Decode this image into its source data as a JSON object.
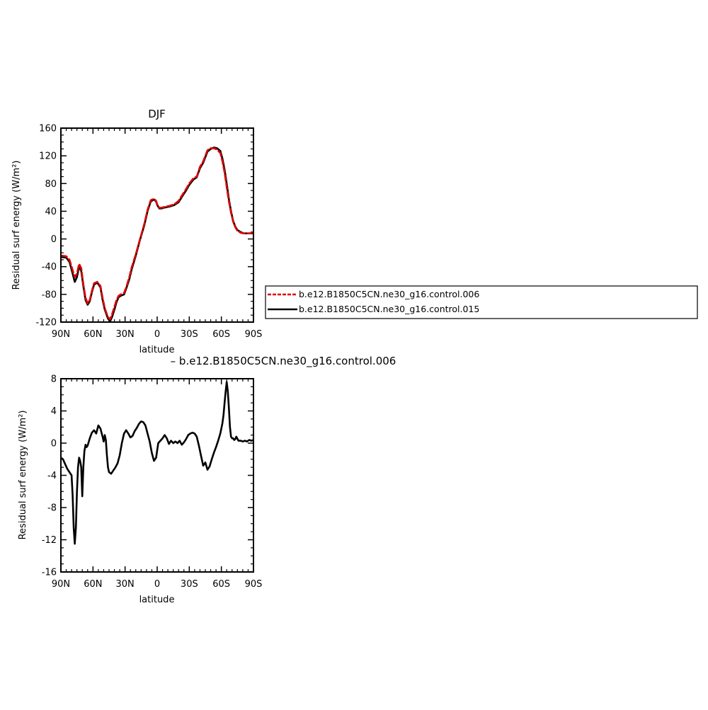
{
  "chart_data": [
    {
      "type": "line",
      "title": "DJF",
      "xlabel": "latitude",
      "ylabel": "Residual surf energy (W/m²)",
      "xlim": [
        90,
        -90
      ],
      "ylim": [
        -120,
        160
      ],
      "xticks": [
        90,
        60,
        30,
        0,
        -30,
        -60,
        -90
      ],
      "xtick_labels": [
        "90N",
        "60N",
        "30N",
        "0",
        "30S",
        "60S",
        "90S"
      ],
      "yticks": [
        -120,
        -80,
        -40,
        0,
        40,
        80,
        120,
        160
      ],
      "ytick_labels": [
        "-120",
        "-80",
        "-40",
        "0",
        "40",
        "80",
        "120",
        "160"
      ],
      "legend_position": "right",
      "series": [
        {
          "name": "b.e12.B1850C5CN.ne30_g16.control.006",
          "color": "#e00000",
          "dash": "dashed",
          "x": [
            90,
            85,
            82,
            79,
            77,
            75,
            73,
            71,
            69,
            67,
            65,
            63,
            61,
            59,
            56,
            53,
            51,
            49,
            46,
            44,
            42,
            40,
            38,
            36,
            34,
            31,
            29,
            26,
            24,
            20,
            16,
            12,
            9,
            6,
            3,
            1,
            0,
            -2,
            -4,
            -6,
            -9,
            -12,
            -16,
            -20,
            -24,
            -27,
            -30,
            -34,
            -37,
            -40,
            -43,
            -45,
            -47,
            -50,
            -53,
            -56,
            -59,
            -61,
            -63,
            -65,
            -67,
            -69,
            -71,
            -73,
            -75,
            -78,
            -81,
            -84,
            -87,
            -90
          ],
          "y": [
            -24,
            -25,
            -30,
            -45,
            -55,
            -50,
            -36,
            -42,
            -65,
            -85,
            -93,
            -88,
            -75,
            -64,
            -62,
            -68,
            -85,
            -100,
            -113,
            -116,
            -108,
            -98,
            -88,
            -82,
            -80,
            -78,
            -70,
            -55,
            -42,
            -22,
            0,
            22,
            42,
            56,
            58,
            55,
            50,
            45,
            45,
            46,
            47,
            48,
            50,
            55,
            65,
            72,
            80,
            88,
            90,
            104,
            112,
            120,
            128,
            131,
            131,
            129,
            124,
            112,
            96,
            75,
            55,
            38,
            25,
            17,
            12,
            9,
            8,
            8,
            8,
            9
          ]
        },
        {
          "name": "b.e12.B1850C5CN.ne30_g16.control.015",
          "color": "#000000",
          "dash": "solid",
          "x": [
            90,
            85,
            82,
            79,
            77,
            75,
            73,
            71,
            69,
            67,
            65,
            63,
            61,
            59,
            56,
            53,
            51,
            49,
            46,
            44,
            42,
            40,
            38,
            36,
            34,
            31,
            29,
            26,
            24,
            20,
            16,
            12,
            9,
            6,
            3,
            1,
            0,
            -2,
            -4,
            -6,
            -9,
            -12,
            -16,
            -20,
            -24,
            -27,
            -30,
            -34,
            -37,
            -40,
            -43,
            -45,
            -47,
            -50,
            -53,
            -56,
            -59,
            -61,
            -63,
            -65,
            -67,
            -69,
            -71,
            -73,
            -75,
            -78,
            -81,
            -84,
            -87,
            -90
          ],
          "y": [
            -26,
            -27,
            -33,
            -50,
            -62,
            -55,
            -40,
            -46,
            -68,
            -88,
            -95,
            -90,
            -77,
            -66,
            -63,
            -70,
            -88,
            -102,
            -115,
            -119,
            -112,
            -102,
            -91,
            -84,
            -82,
            -80,
            -72,
            -58,
            -45,
            -24,
            -1,
            20,
            40,
            54,
            57,
            54,
            49,
            44,
            44,
            45,
            46,
            47,
            49,
            53,
            63,
            70,
            78,
            86,
            89,
            102,
            110,
            118,
            126,
            130,
            132,
            131,
            127,
            116,
            100,
            80,
            58,
            40,
            26,
            18,
            13,
            10,
            8,
            8,
            8,
            8
          ]
        }
      ]
    },
    {
      "type": "line",
      "title": "– b.e12.B1850C5CN.ne30_g16.control.006",
      "xlabel": "latitude",
      "ylabel": "Residual surf energy (W/m²)",
      "xlim": [
        90,
        -90
      ],
      "ylim": [
        -16,
        8
      ],
      "xticks": [
        90,
        60,
        30,
        0,
        -30,
        -60,
        -90
      ],
      "xtick_labels": [
        "90N",
        "60N",
        "30N",
        "0",
        "30S",
        "60S",
        "90S"
      ],
      "yticks": [
        -16,
        -12,
        -8,
        -4,
        0,
        4,
        8
      ],
      "ytick_labels": [
        "-16",
        "-12",
        "-8",
        "-4",
        "0",
        "4",
        "8"
      ],
      "series": [
        {
          "color": "#000000",
          "dash": "solid",
          "x": [
            90,
            88,
            86,
            84,
            82,
            80,
            79,
            78,
            77,
            76,
            75,
            74,
            73,
            72,
            71,
            70,
            69,
            68,
            67,
            66,
            65,
            63,
            61,
            59,
            57,
            55,
            53,
            51,
            50,
            49,
            48,
            47,
            46,
            45,
            43,
            41,
            39,
            37,
            35,
            33,
            31,
            29,
            27,
            25,
            23,
            21,
            19,
            17,
            15,
            13,
            11,
            9,
            7,
            5,
            3,
            1,
            -1,
            -3,
            -5,
            -7,
            -9,
            -11,
            -13,
            -15,
            -17,
            -19,
            -21,
            -23,
            -25,
            -27,
            -29,
            -31,
            -33,
            -35,
            -37,
            -39,
            -41,
            -43,
            -45,
            -47,
            -49,
            -51,
            -53,
            -55,
            -57,
            -59,
            -61,
            -62,
            -63,
            -64,
            -65,
            -66,
            -67,
            -68,
            -69,
            -70,
            -71,
            -72,
            -73,
            -74,
            -76,
            -78,
            -80,
            -82,
            -84,
            -86,
            -88,
            -90
          ],
          "y": [
            -1.8,
            -2.0,
            -2.6,
            -3.2,
            -3.6,
            -4.0,
            -6.5,
            -10.5,
            -12.5,
            -10.5,
            -6.0,
            -3.0,
            -1.8,
            -2.2,
            -3.0,
            -6.6,
            -3.0,
            -1.0,
            -0.2,
            -0.5,
            -0.3,
            0.6,
            1.3,
            1.6,
            1.2,
            2.2,
            1.8,
            0.8,
            0.2,
            1.0,
            0.4,
            -1.5,
            -3.0,
            -3.6,
            -3.8,
            -3.4,
            -3.0,
            -2.5,
            -1.5,
            0.0,
            1.2,
            1.6,
            1.2,
            0.7,
            0.9,
            1.5,
            1.9,
            2.4,
            2.7,
            2.6,
            2.2,
            1.2,
            0.2,
            -1.2,
            -2.2,
            -1.8,
            0.0,
            0.3,
            0.6,
            1.0,
            0.6,
            -0.1,
            0.3,
            0.0,
            0.2,
            0.0,
            0.3,
            -0.2,
            0.1,
            0.5,
            1.0,
            1.2,
            1.3,
            1.2,
            0.8,
            -0.3,
            -1.6,
            -2.8,
            -2.4,
            -3.3,
            -2.9,
            -2.0,
            -1.2,
            -0.5,
            0.3,
            1.2,
            2.5,
            3.5,
            5.0,
            6.4,
            7.6,
            6.5,
            4.5,
            2.0,
            0.8,
            0.6,
            0.6,
            0.4,
            0.5,
            0.8,
            0.3,
            0.3,
            0.2,
            0.3,
            0.2,
            0.4,
            0.3,
            0.4
          ]
        }
      ]
    }
  ]
}
